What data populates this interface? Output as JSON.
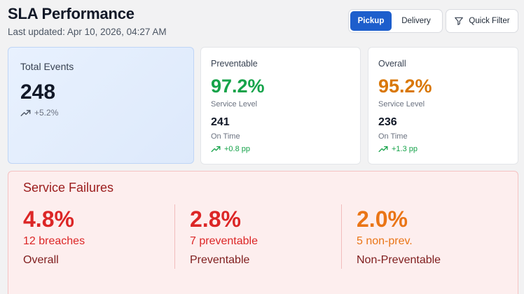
{
  "header": {
    "title": "SLA Performance",
    "last_updated": "Last updated: Apr 10, 2026, 04:27 AM"
  },
  "toggle": {
    "options": [
      "Pickup",
      "Delivery"
    ],
    "selected": "Pickup"
  },
  "quick_filter": {
    "label": "Quick Filter",
    "icon": "filter-icon"
  },
  "cards": {
    "total": {
      "label": "Total Events",
      "value": "248",
      "trend": "+5.2%",
      "trend_icon": "trending-up-icon"
    },
    "preventable": {
      "label": "Preventable",
      "percent": "97.2%",
      "percent_label": "Service Level",
      "count": "241",
      "count_label": "On Time",
      "trend": "+0.8 pp",
      "trend_icon": "trending-up-icon",
      "color": "#16a34a"
    },
    "overall": {
      "label": "Overall",
      "percent": "95.2%",
      "percent_label": "Service Level",
      "count": "236",
      "count_label": "On Time",
      "trend": "+1.3 pp",
      "trend_icon": "trending-up-icon",
      "color": "#d97706"
    }
  },
  "failures": {
    "title": "Service Failures",
    "items": [
      {
        "percent": "4.8%",
        "sub": "12 breaches",
        "label": "Overall",
        "color": "#dc2626"
      },
      {
        "percent": "2.8%",
        "sub": "7 preventable",
        "label": "Preventable",
        "color": "#dc2626"
      },
      {
        "percent": "2.0%",
        "sub": "5 non-prev.",
        "label": "Non-Preventable",
        "color": "#ea7516"
      }
    ]
  }
}
